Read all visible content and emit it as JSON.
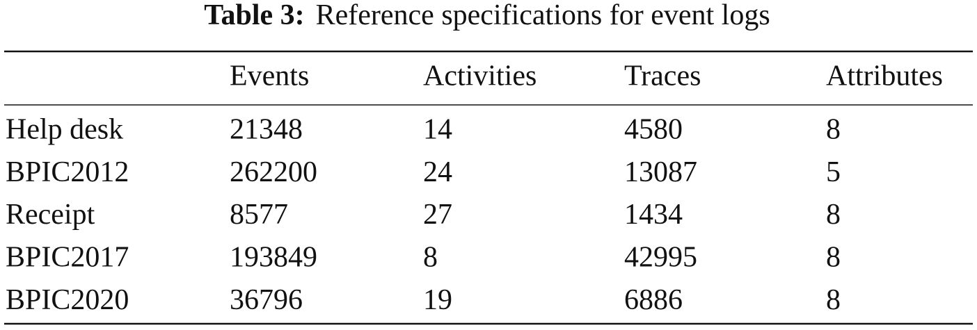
{
  "table": {
    "caption": {
      "label": "Table 3:",
      "text": "Reference specifications for event logs"
    },
    "columns": [
      "Events",
      "Activities",
      "Traces",
      "Attributes"
    ],
    "rows": [
      {
        "name": "Help desk",
        "cells": [
          21348,
          14,
          4580,
          8
        ]
      },
      {
        "name": "BPIC2012",
        "cells": [
          262200,
          24,
          13087,
          5
        ]
      },
      {
        "name": "Receipt",
        "cells": [
          8577,
          27,
          1434,
          8
        ]
      },
      {
        "name": "BPIC2017",
        "cells": [
          193849,
          8,
          42995,
          8
        ]
      },
      {
        "name": "BPIC2020",
        "cells": [
          36796,
          19,
          6886,
          8
        ]
      }
    ]
  }
}
